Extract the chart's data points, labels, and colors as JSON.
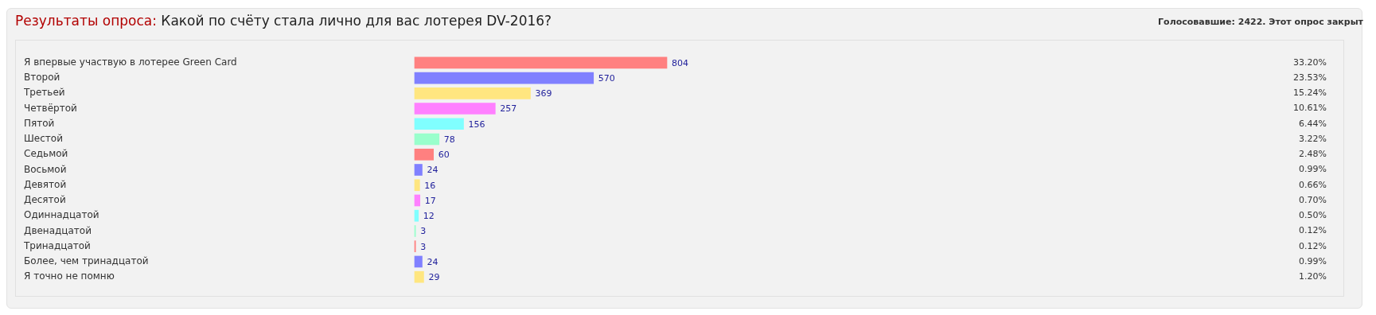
{
  "chart_data": {
    "type": "bar",
    "orientation": "horizontal",
    "title": "Результаты опроса:",
    "subtitle": "Какой по счёту стала лично для вас лотерея DV-2016?",
    "categories": [
      "Я впервые участвую в лотерее Green Card",
      "Второй",
      "Третьей",
      "Четвёртой",
      "Пятой",
      "Шестой",
      "Седьмой",
      "Восьмой",
      "Девятой",
      "Десятой",
      "Одиннадцатой",
      "Двенадцатой",
      "Тринадцатой",
      "Более, чем тринадцатой",
      "Я точно не помню"
    ],
    "values": [
      804,
      570,
      369,
      257,
      156,
      78,
      60,
      24,
      16,
      17,
      12,
      3,
      3,
      24,
      29
    ],
    "data_labels": true,
    "colors": [
      "#ff8080",
      "#8080ff",
      "#ffe680",
      "#ff80ff",
      "#80ffff",
      "#99ffcc",
      "#ff8080",
      "#8080ff",
      "#ffe680",
      "#ff80ff",
      "#80ffff",
      "#99ffcc",
      "#ff8080",
      "#8080ff",
      "#ffe680"
    ],
    "annotations": [
      "Голосовавшие: 2422. Этот опрос закрыт",
      "33.20%",
      "23.53%",
      "15.24%",
      "10.61%",
      "6.44%",
      "3.22%",
      "2.48%",
      "0.99%",
      "0.66%",
      "0.70%",
      "0.50%",
      "0.12%",
      "0.12%",
      "0.99%",
      "1.20%"
    ]
  }
}
